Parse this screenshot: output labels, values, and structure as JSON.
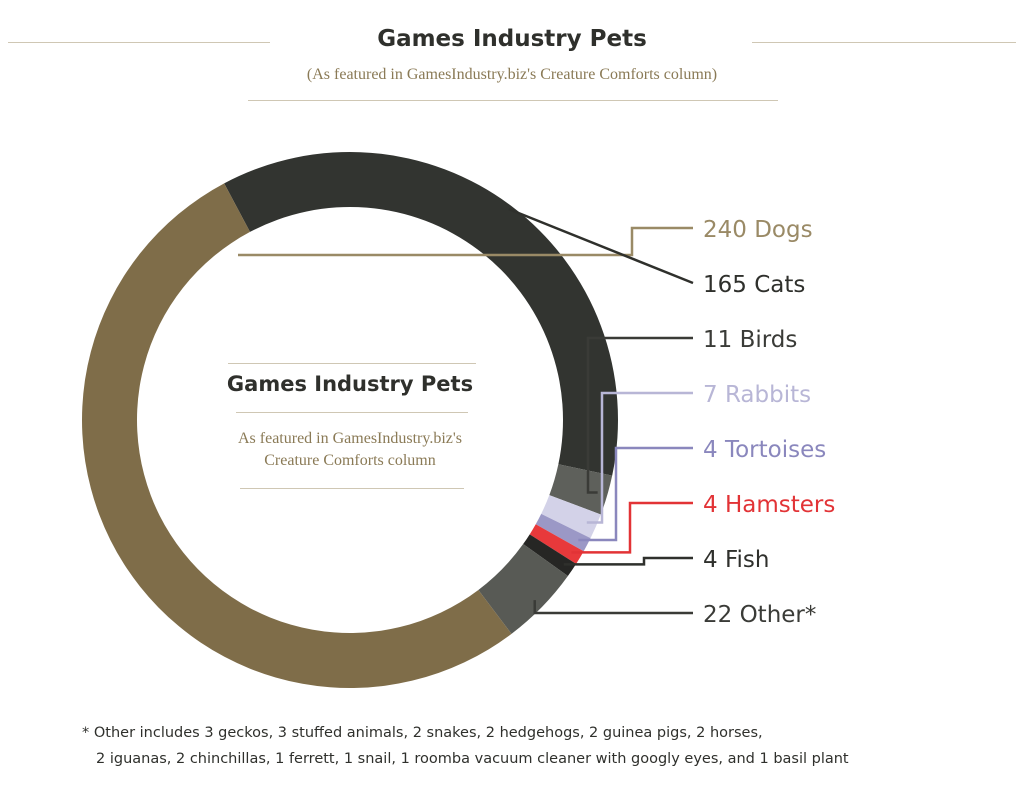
{
  "header": {
    "title": "Games Industry Pets",
    "subtitle": "(As featured in GamesIndustry.biz's Creature Comforts column)"
  },
  "center": {
    "title": "Games Industry Pets",
    "line1": "As featured in GamesIndustry.biz's",
    "line2": "Creature Comforts column"
  },
  "chart_data": {
    "type": "pie",
    "style": "donut",
    "legend": "right, leader lines",
    "slices": [
      {
        "label": "240 Dogs",
        "value": 240,
        "color": "#7f6d49",
        "label_color": "#9a8a66"
      },
      {
        "label": "165 Cats",
        "value": 165,
        "color": "#323430",
        "label_color": "#2f302c"
      },
      {
        "label": "11 Birds",
        "value": 11,
        "color": "#5e605b",
        "label_color": "#3a3b37"
      },
      {
        "label": "7 Rabbits",
        "value": 7,
        "color": "#d3d2e8",
        "label_color": "#b8b6d6"
      },
      {
        "label": "4 Tortoises",
        "value": 4,
        "color": "#9b98c6",
        "label_color": "#8a87bd"
      },
      {
        "label": "4 Hamsters",
        "value": 4,
        "color": "#e8393b",
        "label_color": "#e23336"
      },
      {
        "label": "4 Fish",
        "value": 4,
        "color": "#262624",
        "label_color": "#2f302c"
      },
      {
        "label": "22 Other*",
        "value": 22,
        "color": "#585a55",
        "label_color": "#3a3b37"
      }
    ]
  },
  "footnote": {
    "line1": "* Other includes 3 geckos, 3 stuffed animals, 2 snakes, 2 hedgehogs, 2 guinea pigs, 2 horses,",
    "line2": "2 iguanas, 2 chinchillas, 1 ferrett,  1 snail, 1 roomba vacuum cleaner with googly eyes, and 1 basil plant"
  }
}
